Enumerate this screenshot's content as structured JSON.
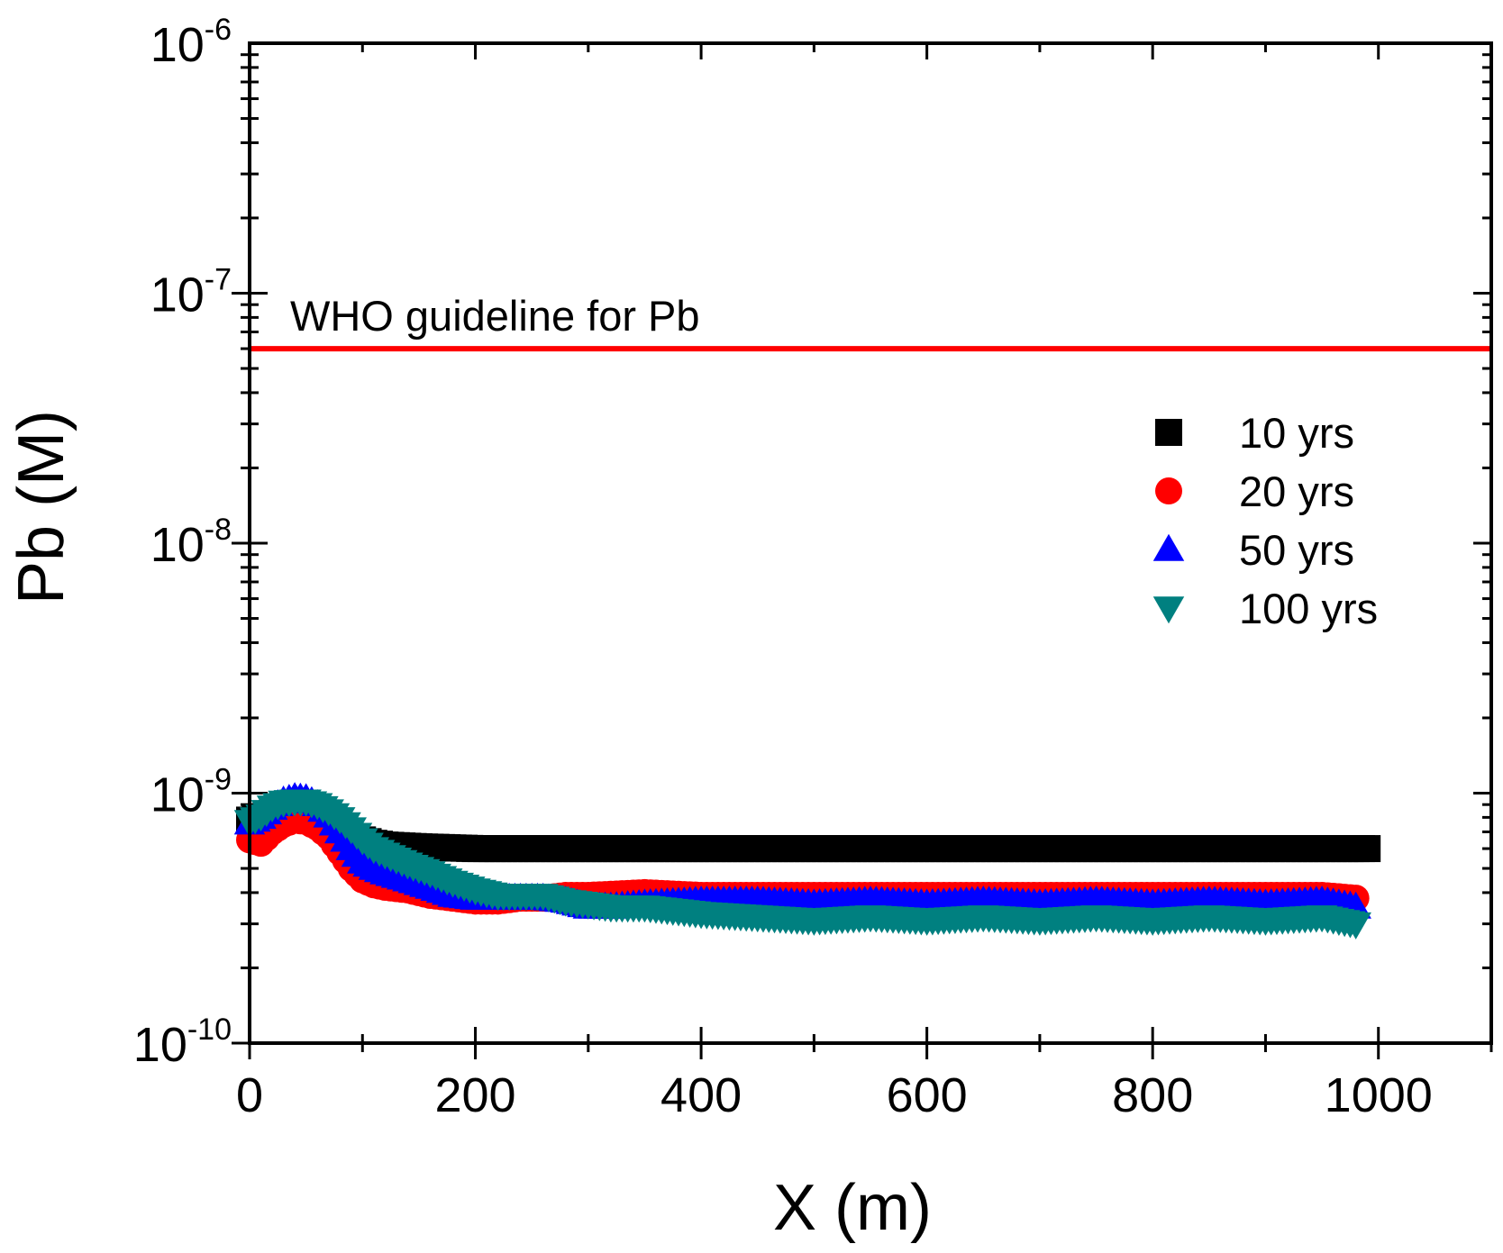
{
  "chart_data": {
    "type": "scatter",
    "title": "",
    "xlabel": "X (m)",
    "ylabel": "Pb (M)",
    "xlim": [
      0,
      1100
    ],
    "ylim": [
      1e-10,
      1e-06
    ],
    "yscale": "log",
    "x_ticks": [
      {
        "value": 0,
        "label": "0"
      },
      {
        "value": 200,
        "label": "200"
      },
      {
        "value": 400,
        "label": "400"
      },
      {
        "value": 600,
        "label": "600"
      },
      {
        "value": 800,
        "label": "800"
      },
      {
        "value": 1000,
        "label": "1000"
      }
    ],
    "y_ticks": [
      {
        "value": 1e-10,
        "base": "10",
        "exp": "-10"
      },
      {
        "value": 1e-09,
        "base": "10",
        "exp": "-9"
      },
      {
        "value": 1e-08,
        "base": "10",
        "exp": "-8"
      },
      {
        "value": 1e-07,
        "base": "10",
        "exp": "-7"
      },
      {
        "value": 1e-06,
        "base": "10",
        "exp": "-6"
      }
    ],
    "reference_line": {
      "label": "WHO guideline for Pb",
      "y": 6e-08,
      "color": "#ff0000"
    },
    "legend_position": "upper-right",
    "series": [
      {
        "name": "10 yrs",
        "marker": "square",
        "color": "#000000",
        "x": [
          0,
          10,
          20,
          30,
          40,
          50,
          60,
          70,
          80,
          90,
          100,
          110,
          120,
          150,
          200,
          250,
          300,
          350,
          400,
          450,
          500,
          550,
          600,
          650,
          700,
          750,
          800,
          850,
          900,
          950,
          990
        ],
        "y": [
          7.8e-10,
          8e-10,
          8.3e-10,
          8.7e-10,
          8.9e-10,
          8.9e-10,
          8.6e-10,
          8e-10,
          7.2e-10,
          6.7e-10,
          6.5e-10,
          6.3e-10,
          6.2e-10,
          6.1e-10,
          6e-10,
          6e-10,
          6e-10,
          6e-10,
          6e-10,
          6e-10,
          6e-10,
          6e-10,
          6e-10,
          6e-10,
          6e-10,
          6e-10,
          6e-10,
          6e-10,
          6e-10,
          6e-10,
          6e-10
        ]
      },
      {
        "name": "20 yrs",
        "marker": "circle",
        "color": "#ff0000",
        "x": [
          0,
          10,
          20,
          30,
          40,
          50,
          60,
          70,
          80,
          90,
          100,
          110,
          120,
          140,
          160,
          180,
          200,
          220,
          240,
          260,
          280,
          300,
          350,
          400,
          450,
          500,
          550,
          600,
          650,
          700,
          750,
          800,
          850,
          900,
          950,
          980
        ],
        "y": [
          6.5e-10,
          6.3e-10,
          7e-10,
          7.5e-10,
          7.8e-10,
          7.7e-10,
          7.3e-10,
          6.7e-10,
          5.8e-10,
          5e-10,
          4.5e-10,
          4.3e-10,
          4.2e-10,
          4.1e-10,
          3.9e-10,
          3.8e-10,
          3.7e-10,
          3.7e-10,
          3.8e-10,
          3.8e-10,
          3.9e-10,
          3.9e-10,
          4e-10,
          3.9e-10,
          3.9e-10,
          3.9e-10,
          3.9e-10,
          3.9e-10,
          3.9e-10,
          3.9e-10,
          3.9e-10,
          3.9e-10,
          3.9e-10,
          3.9e-10,
          3.9e-10,
          3.8e-10
        ]
      },
      {
        "name": "50 yrs",
        "marker": "triangle-up",
        "color": "#0000ff",
        "x": [
          0,
          10,
          20,
          30,
          40,
          50,
          60,
          70,
          80,
          90,
          100,
          110,
          120,
          140,
          160,
          180,
          200,
          220,
          240,
          260,
          280,
          300,
          320,
          350,
          400,
          450,
          500,
          550,
          600,
          650,
          700,
          750,
          800,
          850,
          900,
          950,
          980
        ],
        "y": [
          7.6e-10,
          8e-10,
          8.7e-10,
          9.3e-10,
          9.6e-10,
          9.5e-10,
          9e-10,
          8.1e-10,
          7e-10,
          6e-10,
          5.3e-10,
          5e-10,
          4.8e-10,
          4.5e-10,
          4.2e-10,
          3.9e-10,
          3.8e-10,
          3.8e-10,
          3.8e-10,
          3.8e-10,
          3.7e-10,
          3.5e-10,
          3.5e-10,
          3.6e-10,
          3.7e-10,
          3.7e-10,
          3.6e-10,
          3.7e-10,
          3.6e-10,
          3.7e-10,
          3.6e-10,
          3.7e-10,
          3.6e-10,
          3.7e-10,
          3.6e-10,
          3.7e-10,
          3.5e-10
        ]
      },
      {
        "name": "100 yrs",
        "marker": "triangle-down",
        "color": "#008080",
        "x": [
          0,
          10,
          20,
          30,
          40,
          50,
          60,
          70,
          80,
          90,
          100,
          110,
          120,
          140,
          160,
          180,
          200,
          220,
          240,
          260,
          280,
          300,
          320,
          350,
          400,
          450,
          500,
          550,
          600,
          650,
          700,
          750,
          800,
          850,
          900,
          950,
          980
        ],
        "y": [
          7.7e-10,
          8.1e-10,
          8.8e-10,
          9.2e-10,
          9.3e-10,
          9.3e-10,
          9e-10,
          8.5e-10,
          7.9e-10,
          7.2e-10,
          6.5e-10,
          6e-10,
          5.7e-10,
          5.2e-10,
          4.8e-10,
          4.4e-10,
          4.1e-10,
          3.9e-10,
          3.9e-10,
          3.9e-10,
          3.7e-10,
          3.6e-10,
          3.5e-10,
          3.5e-10,
          3.3e-10,
          3.2e-10,
          3.1e-10,
          3.2e-10,
          3.1e-10,
          3.2e-10,
          3.1e-10,
          3.2e-10,
          3.1e-10,
          3.2e-10,
          3.1e-10,
          3.2e-10,
          3e-10
        ]
      }
    ]
  }
}
